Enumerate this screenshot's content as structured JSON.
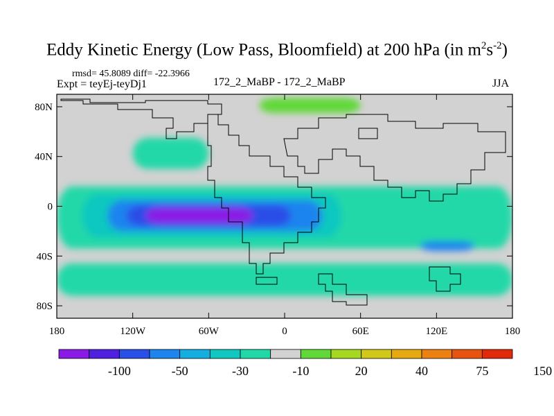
{
  "header": {
    "title": "Eddy Kinetic Energy (Low Pass, Bloomfield) at 200 hPa (in m",
    "unit_sup1": "2",
    "unit_mid": "s",
    "unit_sup2": "-2",
    "unit_close": ")",
    "stats": "rmsd= 45.8089 diff= -22.3966",
    "expt": "Expt = teyEj-teyDj1",
    "center_label": "172_2_MaBP - 172_2_MaBP",
    "season": "JJA"
  },
  "chart_data": {
    "type": "heatmap",
    "title": "Eddy Kinetic Energy (Low Pass, Bloomfield) at 200 hPa (in m^2 s^-2)",
    "x_ticks": [
      "180",
      "120W",
      "60W",
      "0",
      "60E",
      "120E",
      "180"
    ],
    "y_ticks": [
      "80N",
      "40N",
      "0",
      "40S",
      "80S"
    ],
    "xlim": [
      -180,
      180
    ],
    "ylim": [
      -90,
      90
    ],
    "colorbar": {
      "labels": [
        "-100",
        "-50",
        "-30",
        "-10",
        "20",
        "40",
        "75",
        "150"
      ],
      "colors": [
        "#8a1ae6",
        "#5020e0",
        "#2a4ee8",
        "#1e84ee",
        "#14aee0",
        "#10c8c0",
        "#20d8a8",
        "#d2d2d2",
        "#60d838",
        "#a6d820",
        "#d2c81a",
        "#e6aa10",
        "#ec8010",
        "#e85410",
        "#e02a0a"
      ]
    },
    "regions": [
      {
        "name": "tropical-belt",
        "level": 6,
        "lon": [
          -180,
          180
        ],
        "lat": [
          -34,
          16
        ]
      },
      {
        "name": "tropical-core-outer",
        "level": 5,
        "lon": [
          -160,
          45
        ],
        "lat": [
          -25,
          10
        ]
      },
      {
        "name": "tropical-core-mid",
        "level": 3,
        "lon": [
          -140,
          30
        ],
        "lat": [
          -20,
          5
        ]
      },
      {
        "name": "tropical-core-inner",
        "level": 2,
        "lon": [
          -125,
          5
        ],
        "lat": [
          -16,
          1
        ]
      },
      {
        "name": "tropical-core-min",
        "level": 0,
        "lon": [
          -110,
          -25
        ],
        "lat": [
          -14,
          -1
        ]
      },
      {
        "name": "south-indian-ocean-low",
        "level": 3,
        "lon": [
          107,
          150
        ],
        "lat": [
          -36,
          -28
        ]
      },
      {
        "name": "southern-ocean-band",
        "level": 6,
        "lon": [
          -180,
          180
        ],
        "lat": [
          -72,
          -46
        ]
      },
      {
        "name": "arctic-green",
        "level": 8,
        "lon": [
          -20,
          60
        ],
        "lat": [
          75,
          87
        ]
      },
      {
        "name": "north-pacific-patch",
        "level": 6,
        "lon": [
          -120,
          -60
        ],
        "lat": [
          30,
          55
        ]
      }
    ]
  }
}
